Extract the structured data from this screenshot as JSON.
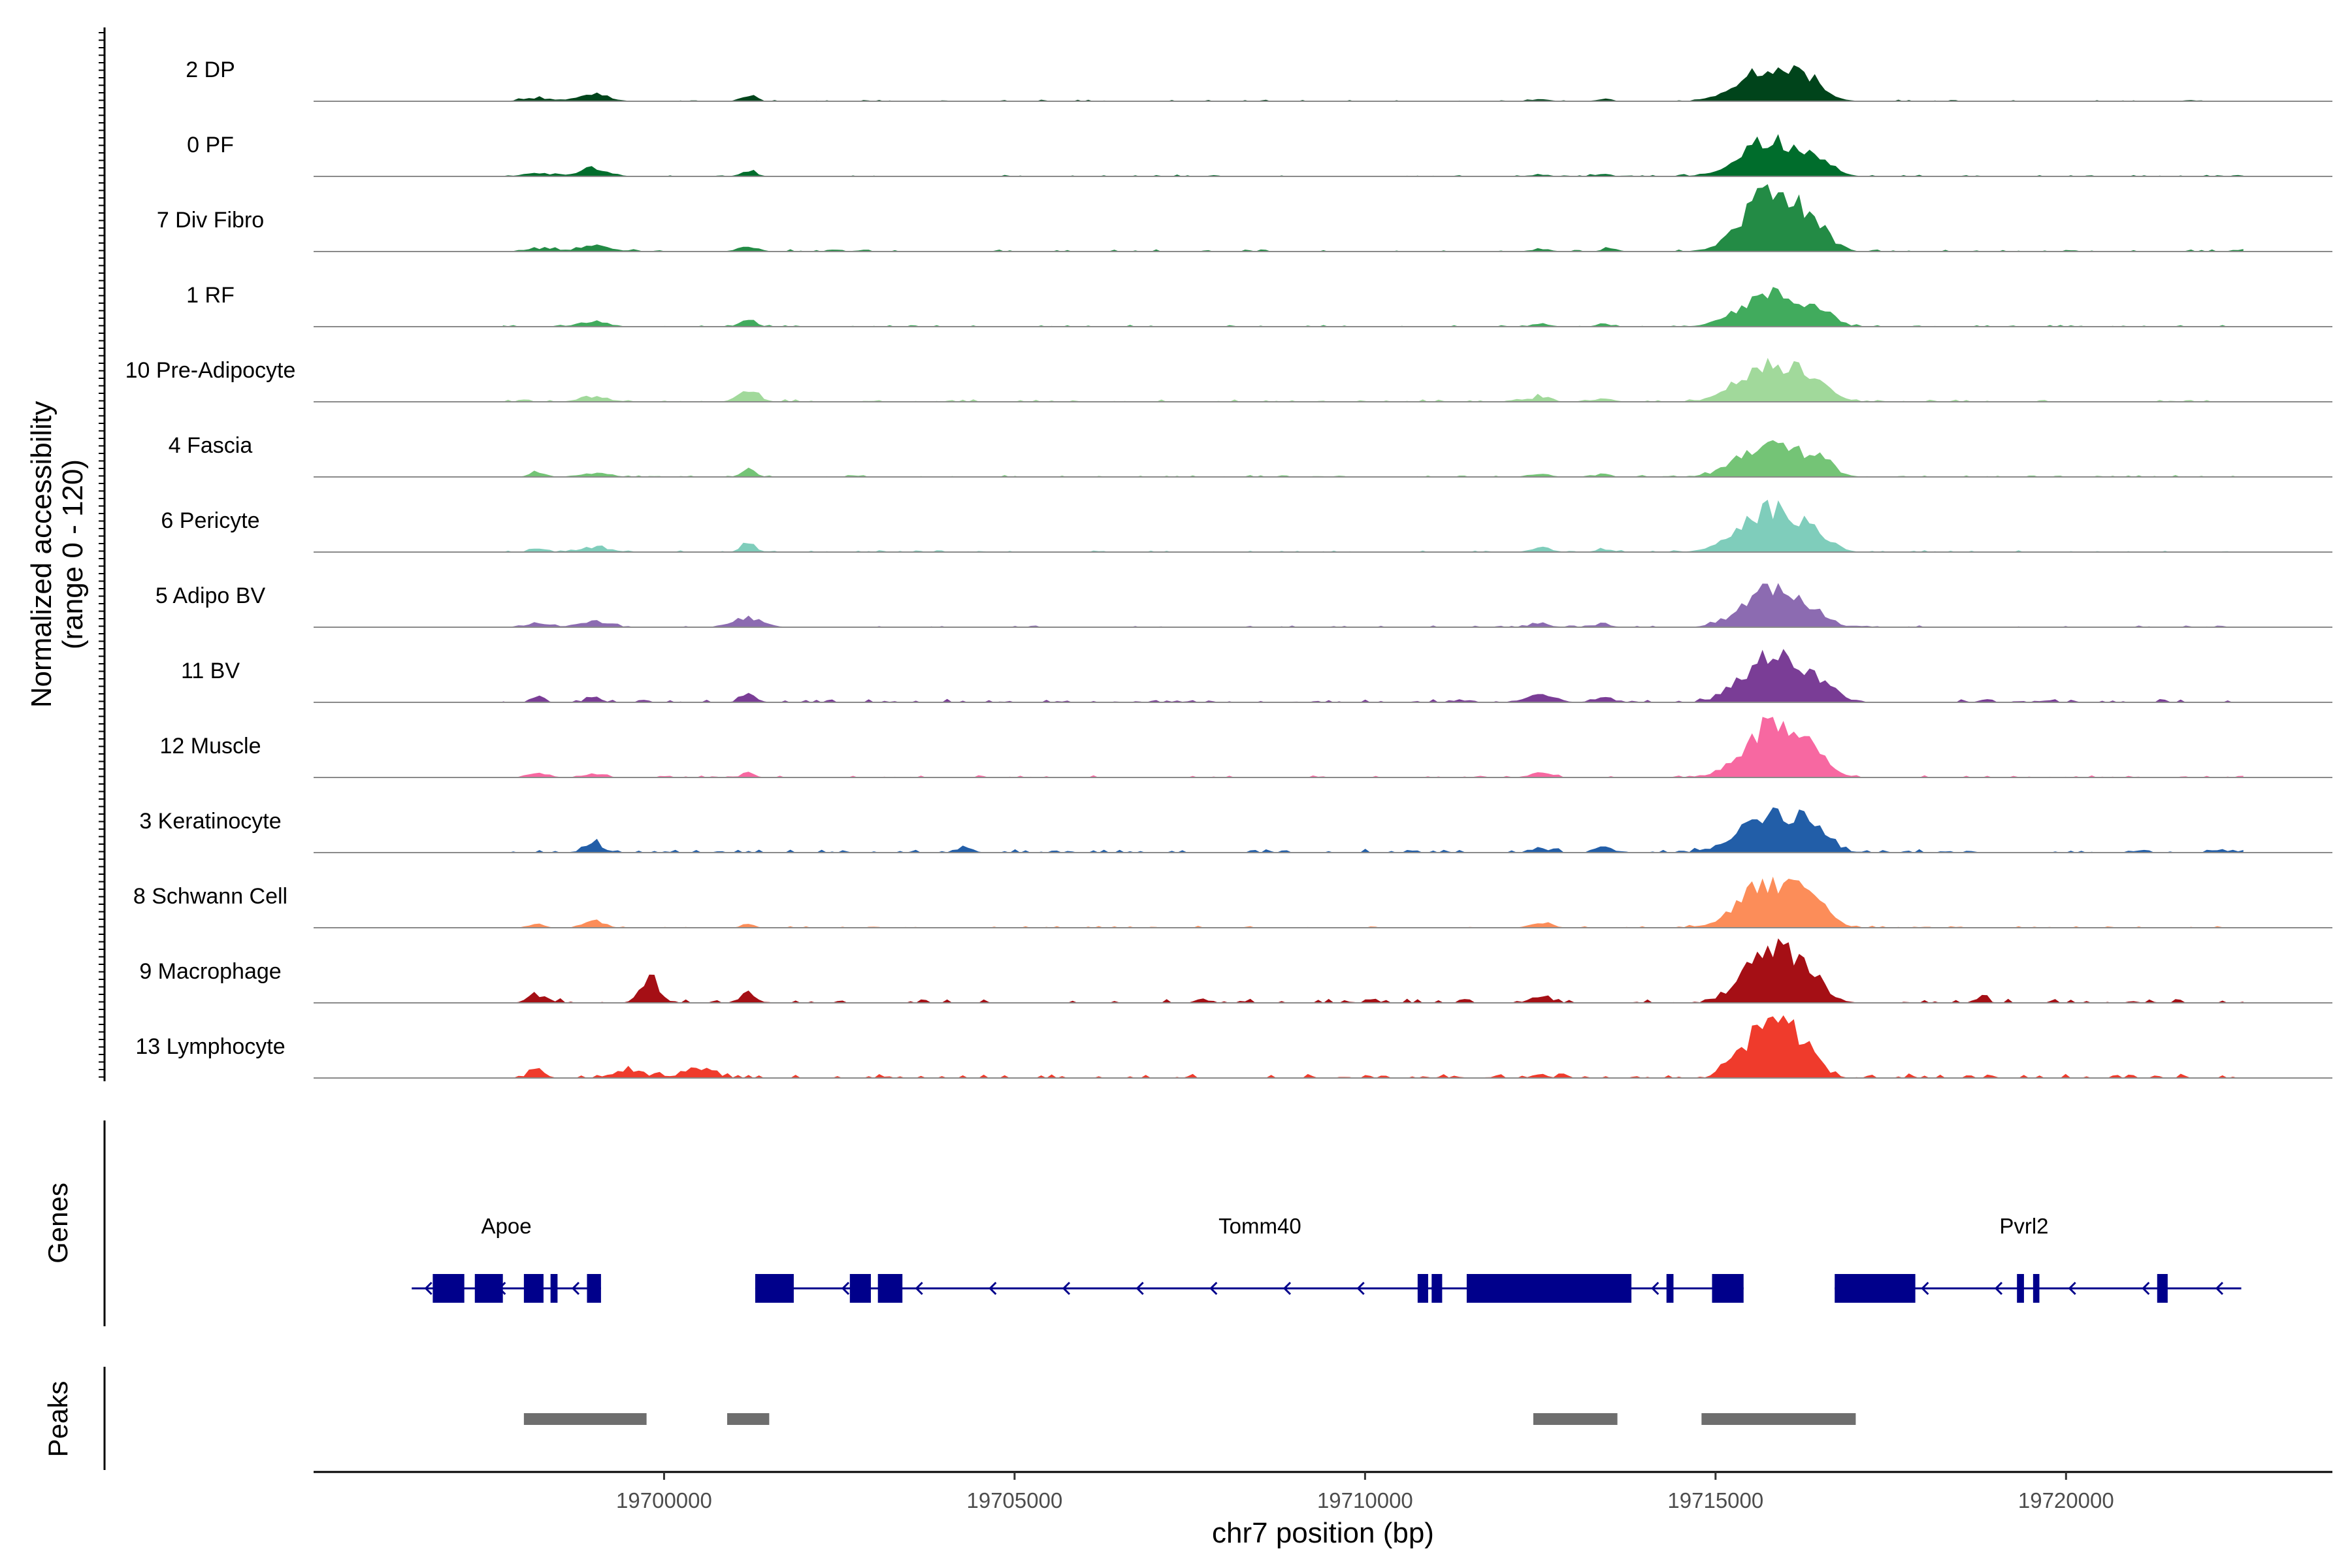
{
  "chart_data": {
    "type": "area",
    "title": "",
    "xlabel": "chr7 position (bp)",
    "ylabel": "Normalized accessibility",
    "ylabel_range": "(range 0 - 120)",
    "ylim": [
      0,
      120
    ],
    "xlim": [
      19695000,
      19723800
    ],
    "x_ticks": [
      19700000,
      19705000,
      19710000,
      19715000,
      19720000
    ],
    "x_tick_labels": [
      "19700000",
      "19705000",
      "19710000",
      "19715000",
      "19720000"
    ],
    "tracks": [
      {
        "name": "2 DP",
        "color": "#00441b",
        "peaks": [
          [
            19715800,
            50,
            600
          ],
          [
            19716300,
            20,
            250
          ],
          [
            19699000,
            12,
            300
          ],
          [
            19698200,
            5,
            300
          ],
          [
            19701200,
            10,
            150
          ],
          [
            19712500,
            3,
            200
          ],
          [
            19713400,
            4,
            150
          ]
        ],
        "noise": 1.2
      },
      {
        "name": "0 PF",
        "color": "#006d2c",
        "peaks": [
          [
            19715800,
            58,
            580
          ],
          [
            19716500,
            22,
            250
          ],
          [
            19699000,
            12,
            300
          ],
          [
            19698200,
            5,
            300
          ],
          [
            19701200,
            10,
            150
          ],
          [
            19712500,
            3,
            200
          ],
          [
            19713400,
            4,
            150
          ]
        ],
        "noise": 1.2
      },
      {
        "name": "7 Div Fibro",
        "color": "#238b45",
        "peaks": [
          [
            19715800,
            95,
            550
          ],
          [
            19716400,
            30,
            300
          ],
          [
            19699000,
            10,
            300
          ],
          [
            19698200,
            5,
            300
          ],
          [
            19701200,
            8,
            200
          ],
          [
            19712500,
            4,
            200
          ],
          [
            19713500,
            5,
            150
          ]
        ],
        "noise": 1.6
      },
      {
        "name": "1 RF",
        "color": "#41ab5d",
        "peaks": [
          [
            19715800,
            52,
            600
          ],
          [
            19716500,
            20,
            250
          ],
          [
            19699000,
            8,
            300
          ],
          [
            19701200,
            12,
            150
          ],
          [
            19712500,
            4,
            200
          ],
          [
            19713400,
            5,
            150
          ]
        ],
        "noise": 1.2
      },
      {
        "name": "10 Pre-Adipocyte",
        "color": "#a1d99b",
        "peaks": [
          [
            19715800,
            60,
            600
          ],
          [
            19716400,
            20,
            300
          ],
          [
            19701200,
            18,
            200
          ],
          [
            19699000,
            8,
            300
          ],
          [
            19712500,
            8,
            200
          ],
          [
            19713400,
            5,
            200
          ]
        ],
        "noise": 1.8
      },
      {
        "name": "4 Fascia",
        "color": "#74c476",
        "peaks": [
          [
            19715800,
            55,
            600
          ],
          [
            19716500,
            20,
            250
          ],
          [
            19701200,
            12,
            150
          ],
          [
            19699000,
            6,
            300
          ],
          [
            19698200,
            8,
            150
          ],
          [
            19712500,
            6,
            200
          ],
          [
            19713400,
            5,
            150
          ]
        ],
        "noise": 1.3
      },
      {
        "name": "6 Pericyte",
        "color": "#7fcdbb",
        "peaks": [
          [
            19715800,
            68,
            600
          ],
          [
            19716400,
            20,
            250
          ],
          [
            19701200,
            14,
            150
          ],
          [
            19699000,
            8,
            300
          ],
          [
            19698200,
            6,
            150
          ],
          [
            19712500,
            6,
            200
          ],
          [
            19713400,
            5,
            150
          ]
        ],
        "noise": 1.3
      },
      {
        "name": "5 Adipo BV",
        "color": "#8c6bb1",
        "peaks": [
          [
            19715800,
            62,
            550
          ],
          [
            19716400,
            15,
            300
          ],
          [
            19701200,
            14,
            300
          ],
          [
            19699000,
            9,
            300
          ],
          [
            19698200,
            7,
            200
          ],
          [
            19712500,
            5,
            200
          ],
          [
            19713400,
            6,
            150
          ]
        ],
        "noise": 1.3
      },
      {
        "name": "11 BV",
        "color": "#7a3d96",
        "peaks": [
          [
            19715800,
            75,
            550
          ],
          [
            19716500,
            25,
            300
          ],
          [
            19701200,
            14,
            150
          ],
          [
            19698200,
            10,
            120
          ],
          [
            19699000,
            8,
            150
          ],
          [
            19712500,
            12,
            300
          ],
          [
            19713400,
            8,
            200
          ]
        ],
        "noise": 2.2
      },
      {
        "name": "12 Muscle",
        "color": "#f768a1",
        "peaks": [
          [
            19715800,
            80,
            550
          ],
          [
            19716400,
            25,
            300
          ],
          [
            19701200,
            8,
            120
          ],
          [
            19698200,
            8,
            200
          ],
          [
            19699000,
            6,
            200
          ],
          [
            19712500,
            8,
            200
          ]
        ],
        "noise": 1.6
      },
      {
        "name": "3 Keratinocyte",
        "color": "#225ea8",
        "peaks": [
          [
            19715800,
            62,
            600
          ],
          [
            19716400,
            25,
            300
          ],
          [
            19699000,
            14,
            200
          ],
          [
            19704300,
            9,
            150
          ],
          [
            19712500,
            6,
            200
          ],
          [
            19713400,
            10,
            150
          ]
        ],
        "noise": 2.5
      },
      {
        "name": "8 Schwann Cell",
        "color": "#fc8d59",
        "peaks": [
          [
            19715800,
            72,
            600
          ],
          [
            19716400,
            25,
            300
          ],
          [
            19699000,
            12,
            200
          ],
          [
            19698200,
            6,
            150
          ],
          [
            19701200,
            8,
            120
          ],
          [
            19712500,
            8,
            200
          ]
        ],
        "noise": 1.3
      },
      {
        "name": "9 Macrophage",
        "color": "#a50f15",
        "peaks": [
          [
            19715800,
            95,
            500
          ],
          [
            19716400,
            25,
            300
          ],
          [
            19699800,
            40,
            180
          ],
          [
            19701200,
            18,
            150
          ],
          [
            19698200,
            10,
            200
          ],
          [
            19712500,
            10,
            200
          ],
          [
            19718800,
            12,
            100
          ]
        ],
        "noise": 3.0
      },
      {
        "name": "13 Lymphocyte",
        "color": "#ef3b2c",
        "peaks": [
          [
            19715800,
            105,
            400
          ],
          [
            19716300,
            30,
            300
          ],
          [
            19698200,
            14,
            150
          ],
          [
            19699500,
            12,
            300
          ],
          [
            19700500,
            15,
            300
          ],
          [
            19712500,
            6,
            150
          ],
          [
            19715200,
            20,
            200
          ]
        ],
        "noise": 3.2
      }
    ],
    "genes_panel_title": "Genes",
    "peaks_panel_title": "Peaks",
    "genes": [
      {
        "name": "Apoe",
        "label_x": 19697750,
        "strand": "-",
        "start": 19696400,
        "end": 19699100,
        "exons": [
          [
            19696700,
            19697150
          ],
          [
            19697300,
            19697700
          ],
          [
            19698000,
            19698280
          ],
          [
            19698380,
            19698480
          ],
          [
            19698900,
            19699100
          ]
        ]
      },
      {
        "name": "Tomm40",
        "label_x": 19708500,
        "strand": "-",
        "start": 19701300,
        "end": 19715400,
        "exons": [
          [
            19701300,
            19701850
          ],
          [
            19702650,
            19702950
          ],
          [
            19703050,
            19703400
          ],
          [
            19710750,
            19710900
          ],
          [
            19710950,
            19711100
          ],
          [
            19711450,
            19713800
          ],
          [
            19714300,
            19714400
          ],
          [
            19714950,
            19715400
          ]
        ]
      },
      {
        "name": "Pvrl2",
        "label_x": 19719400,
        "strand": "-",
        "start": 19716700,
        "end": 19722500,
        "exons": [
          [
            19716700,
            19717850
          ],
          [
            19719300,
            19719400
          ],
          [
            19719530,
            19719620
          ],
          [
            19721300,
            19721450
          ]
        ]
      }
    ],
    "peak_regions": [
      [
        19698000,
        19699750
      ],
      [
        19700900,
        19701500
      ],
      [
        19712400,
        19713600
      ],
      [
        19714800,
        19717000
      ]
    ]
  },
  "style": {
    "gene_color": "#00008b",
    "peak_color": "#6e6e6e",
    "baseline_color": "#8a8a8a"
  }
}
